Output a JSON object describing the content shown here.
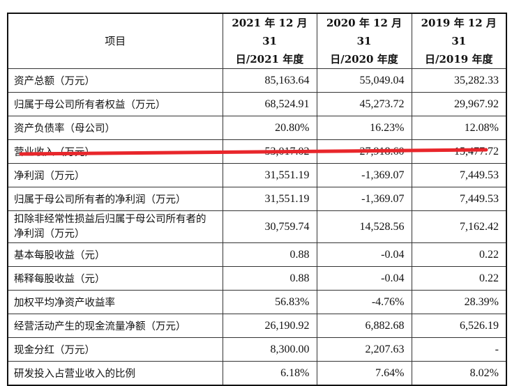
{
  "header": {
    "item": "项目",
    "col1": [
      "2021 年 12 月 31",
      "日/2021 年度"
    ],
    "col2": [
      "2020 年 12 月 31",
      "日/2020 年度"
    ],
    "col3": [
      "2019 年 12 月 31",
      "日/2019 年度"
    ]
  },
  "rows": [
    {
      "label": "资产总额（万元）",
      "values": [
        "85,163.64",
        "55,049.04",
        "35,282.33"
      ]
    },
    {
      "label": "归属于母公司所有者权益（万元）",
      "values": [
        "68,524.91",
        "45,273.72",
        "29,967.92"
      ]
    },
    {
      "label": "资产负债率（母公司）",
      "values": [
        "20.80%",
        "16.23%",
        "12.08%"
      ]
    },
    {
      "label": "营业收入（万元）",
      "values": [
        "53,017.02",
        "27,918.60",
        "15,477.72"
      ]
    },
    {
      "label": "净利润（万元）",
      "values": [
        "31,551.19",
        "-1,369.07",
        "7,449.53"
      ]
    },
    {
      "label": "归属于母公司所有者的净利润（万元）",
      "values": [
        "31,551.19",
        "-1,369.07",
        "7,449.53"
      ]
    },
    {
      "label": "扣除非经常性损益后归属于母公司所有者的净利润（万元）",
      "values": [
        "30,759.74",
        "14,528.56",
        "7,162.42"
      ]
    },
    {
      "label": "基本每股收益（元）",
      "values": [
        "0.88",
        "-0.04",
        "0.22"
      ]
    },
    {
      "label": "稀释每股收益（元）",
      "values": [
        "0.88",
        "-0.04",
        "0.22"
      ]
    },
    {
      "label": "加权平均净资产收益率",
      "values": [
        "56.83%",
        "-4.76%",
        "28.39%"
      ]
    },
    {
      "label": "经营活动产生的现金流量净额（万元）",
      "values": [
        "26,190.92",
        "6,882.68",
        "6,526.19"
      ]
    },
    {
      "label": "现金分红（万元）",
      "values": [
        "8,300.00",
        "2,207.63",
        "-"
      ]
    },
    {
      "label": "研发投入占营业收入的比例",
      "values": [
        "6.18%",
        "7.64%",
        "8.02%"
      ]
    }
  ],
  "annotation_color": "#e8262b"
}
